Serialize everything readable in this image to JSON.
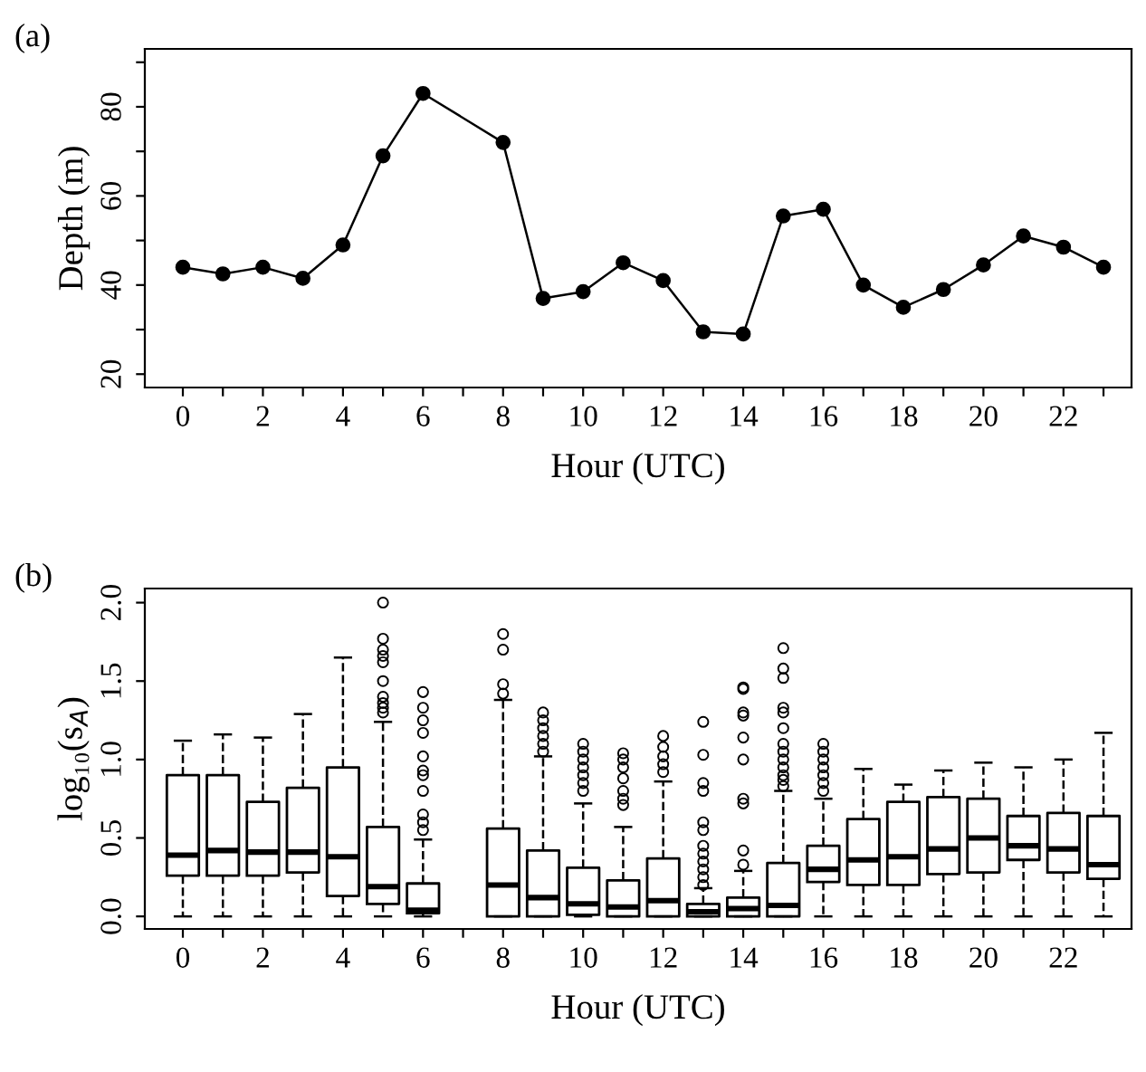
{
  "chart_data": [
    {
      "type": "line",
      "title": "(a)",
      "xlabel": "Hour (UTC)",
      "ylabel": "Depth (m)",
      "marker": "circle",
      "line_style": "solid",
      "grid": false,
      "legend": false,
      "series": [
        {
          "color": "#000000",
          "x": [
            0,
            1,
            2,
            3,
            4,
            5,
            6,
            8,
            9,
            10,
            11,
            12,
            13,
            14,
            15,
            16,
            17,
            18,
            19,
            20,
            21,
            22,
            23
          ],
          "values": [
            44,
            42.5,
            44,
            41.5,
            49,
            69,
            83,
            72,
            37,
            38.5,
            45,
            41,
            29.5,
            29,
            55.5,
            57,
            40,
            35,
            39,
            44.5,
            51,
            48.5,
            44
          ]
        }
      ],
      "xlim": [
        -0.95,
        23.7
      ],
      "xticks": [
        0,
        {
          "value": 1,
          "label": null
        },
        2,
        {
          "value": 3,
          "label": null
        },
        4,
        {
          "value": 5,
          "label": null
        },
        6,
        {
          "value": 7,
          "label": null
        },
        8,
        {
          "value": 9,
          "label": null
        },
        10,
        {
          "value": 11,
          "label": null
        },
        12,
        {
          "value": 13,
          "label": null
        },
        14,
        {
          "value": 15,
          "label": null
        },
        16,
        {
          "value": 17,
          "label": null
        },
        18,
        {
          "value": 19,
          "label": null
        },
        20,
        {
          "value": 21,
          "label": null
        },
        22,
        {
          "value": 23,
          "label": null
        }
      ],
      "ylim": [
        17,
        93
      ],
      "yticks": [
        20,
        {
          "value": 30,
          "label": null
        },
        40,
        {
          "value": 50,
          "label": null
        },
        60,
        {
          "value": 70,
          "label": null
        },
        80,
        {
          "value": 90,
          "label": null
        }
      ]
    },
    {
      "type": "box",
      "title": "(b)",
      "xlabel": "Hour (UTC)",
      "ylabel": "log₁₀(s$_{A}$)",
      "grid": false,
      "legend": false,
      "categories": [
        "0",
        null,
        "2",
        null,
        "4",
        null,
        "6",
        null,
        "8",
        null,
        "10",
        null,
        "12",
        null,
        "14",
        null,
        "16",
        null,
        "18",
        null,
        "20",
        null,
        "22",
        null
      ],
      "boxes": [
        {
          "low": 0,
          "q1": 0.26,
          "median": 0.39,
          "q3": 0.9,
          "high": 1.12
        },
        {
          "low": 0,
          "q1": 0.26,
          "median": 0.42,
          "q3": 0.9,
          "high": 1.16
        },
        {
          "low": 0,
          "q1": 0.26,
          "median": 0.41,
          "q3": 0.73,
          "high": 1.14
        },
        {
          "low": 0,
          "q1": 0.28,
          "median": 0.41,
          "q3": 0.82,
          "high": 1.29
        },
        {
          "low": 0,
          "q1": 0.13,
          "median": 0.38,
          "q3": 0.95,
          "high": 1.65
        },
        {
          "low": 0,
          "q1": 0.08,
          "median": 0.19,
          "q3": 0.57,
          "high": 1.24,
          "outliers": [
            1.3,
            1.33,
            1.36,
            1.4,
            1.5,
            1.62,
            1.66,
            1.7,
            1.77,
            2.0
          ]
        },
        {
          "low": 0,
          "q1": 0.02,
          "median": 0.04,
          "q3": 0.21,
          "high": 0.49,
          "outliers": [
            0.55,
            0.6,
            0.65,
            0.8,
            0.9,
            0.93,
            1.02,
            1.17,
            1.25,
            1.33,
            1.43
          ]
        },
        null,
        {
          "low": 0,
          "q1": 0,
          "median": 0.2,
          "q3": 0.56,
          "high": 1.38,
          "outliers": [
            1.42,
            1.48,
            1.7,
            1.8
          ]
        },
        {
          "low": 0,
          "q1": 0,
          "median": 0.12,
          "q3": 0.42,
          "high": 1.02,
          "outliers": [
            1.05,
            1.1,
            1.15,
            1.2,
            1.25,
            1.3
          ]
        },
        {
          "low": 0,
          "q1": 0.01,
          "median": 0.08,
          "q3": 0.31,
          "high": 0.72,
          "outliers": [
            0.8,
            0.85,
            0.9,
            0.95,
            1.0,
            1.05,
            1.1
          ]
        },
        {
          "low": 0,
          "q1": 0,
          "median": 0.06,
          "q3": 0.23,
          "high": 0.57,
          "outliers": [
            0.71,
            0.75,
            0.8,
            0.88,
            0.95,
            1.0,
            1.04
          ]
        },
        {
          "low": 0,
          "q1": 0,
          "median": 0.1,
          "q3": 0.37,
          "high": 0.86,
          "outliers": [
            0.92,
            0.97,
            1.02,
            1.08,
            1.15
          ]
        },
        {
          "low": 0,
          "q1": 0,
          "median": 0.03,
          "q3": 0.08,
          "high": 0.18,
          "outliers": [
            0.2,
            0.25,
            0.3,
            0.35,
            0.4,
            0.45,
            0.55,
            0.6,
            0.8,
            0.85,
            1.03,
            1.24
          ]
        },
        {
          "low": 0,
          "q1": 0,
          "median": 0.05,
          "q3": 0.12,
          "high": 0.29,
          "outliers": [
            0.33,
            0.42,
            0.72,
            0.75,
            1.0,
            1.14,
            1.28,
            1.3,
            1.45,
            1.46
          ]
        },
        {
          "low": 0,
          "q1": 0,
          "median": 0.07,
          "q3": 0.34,
          "high": 0.8,
          "outliers": [
            0.83,
            0.87,
            0.9,
            0.95,
            1.0,
            1.05,
            1.1,
            1.2,
            1.3,
            1.33,
            1.52,
            1.58,
            1.71
          ]
        },
        {
          "low": 0,
          "q1": 0.22,
          "median": 0.3,
          "q3": 0.45,
          "high": 0.75,
          "outliers": [
            0.8,
            0.85,
            0.9,
            0.95,
            1.0,
            1.05,
            1.1
          ]
        },
        {
          "low": 0,
          "q1": 0.2,
          "median": 0.36,
          "q3": 0.62,
          "high": 0.94
        },
        {
          "low": 0,
          "q1": 0.2,
          "median": 0.38,
          "q3": 0.73,
          "high": 0.84
        },
        {
          "low": 0,
          "q1": 0.27,
          "median": 0.43,
          "q3": 0.76,
          "high": 0.93
        },
        {
          "low": 0,
          "q1": 0.28,
          "median": 0.5,
          "q3": 0.75,
          "high": 0.98
        },
        {
          "low": 0,
          "q1": 0.36,
          "median": 0.45,
          "q3": 0.64,
          "high": 0.95
        },
        {
          "low": 0,
          "q1": 0.28,
          "median": 0.43,
          "q3": 0.66,
          "high": 1.0
        },
        {
          "low": 0,
          "q1": 0.24,
          "median": 0.33,
          "q3": 0.64,
          "high": 1.17
        }
      ],
      "ylim": [
        -0.08,
        2.09
      ],
      "yticks": [
        {
          "value": 0,
          "label": "0.0"
        },
        0.5,
        {
          "value": 1,
          "label": "1.0"
        },
        1.5,
        {
          "value": 2,
          "label": "2.0"
        }
      ]
    }
  ]
}
